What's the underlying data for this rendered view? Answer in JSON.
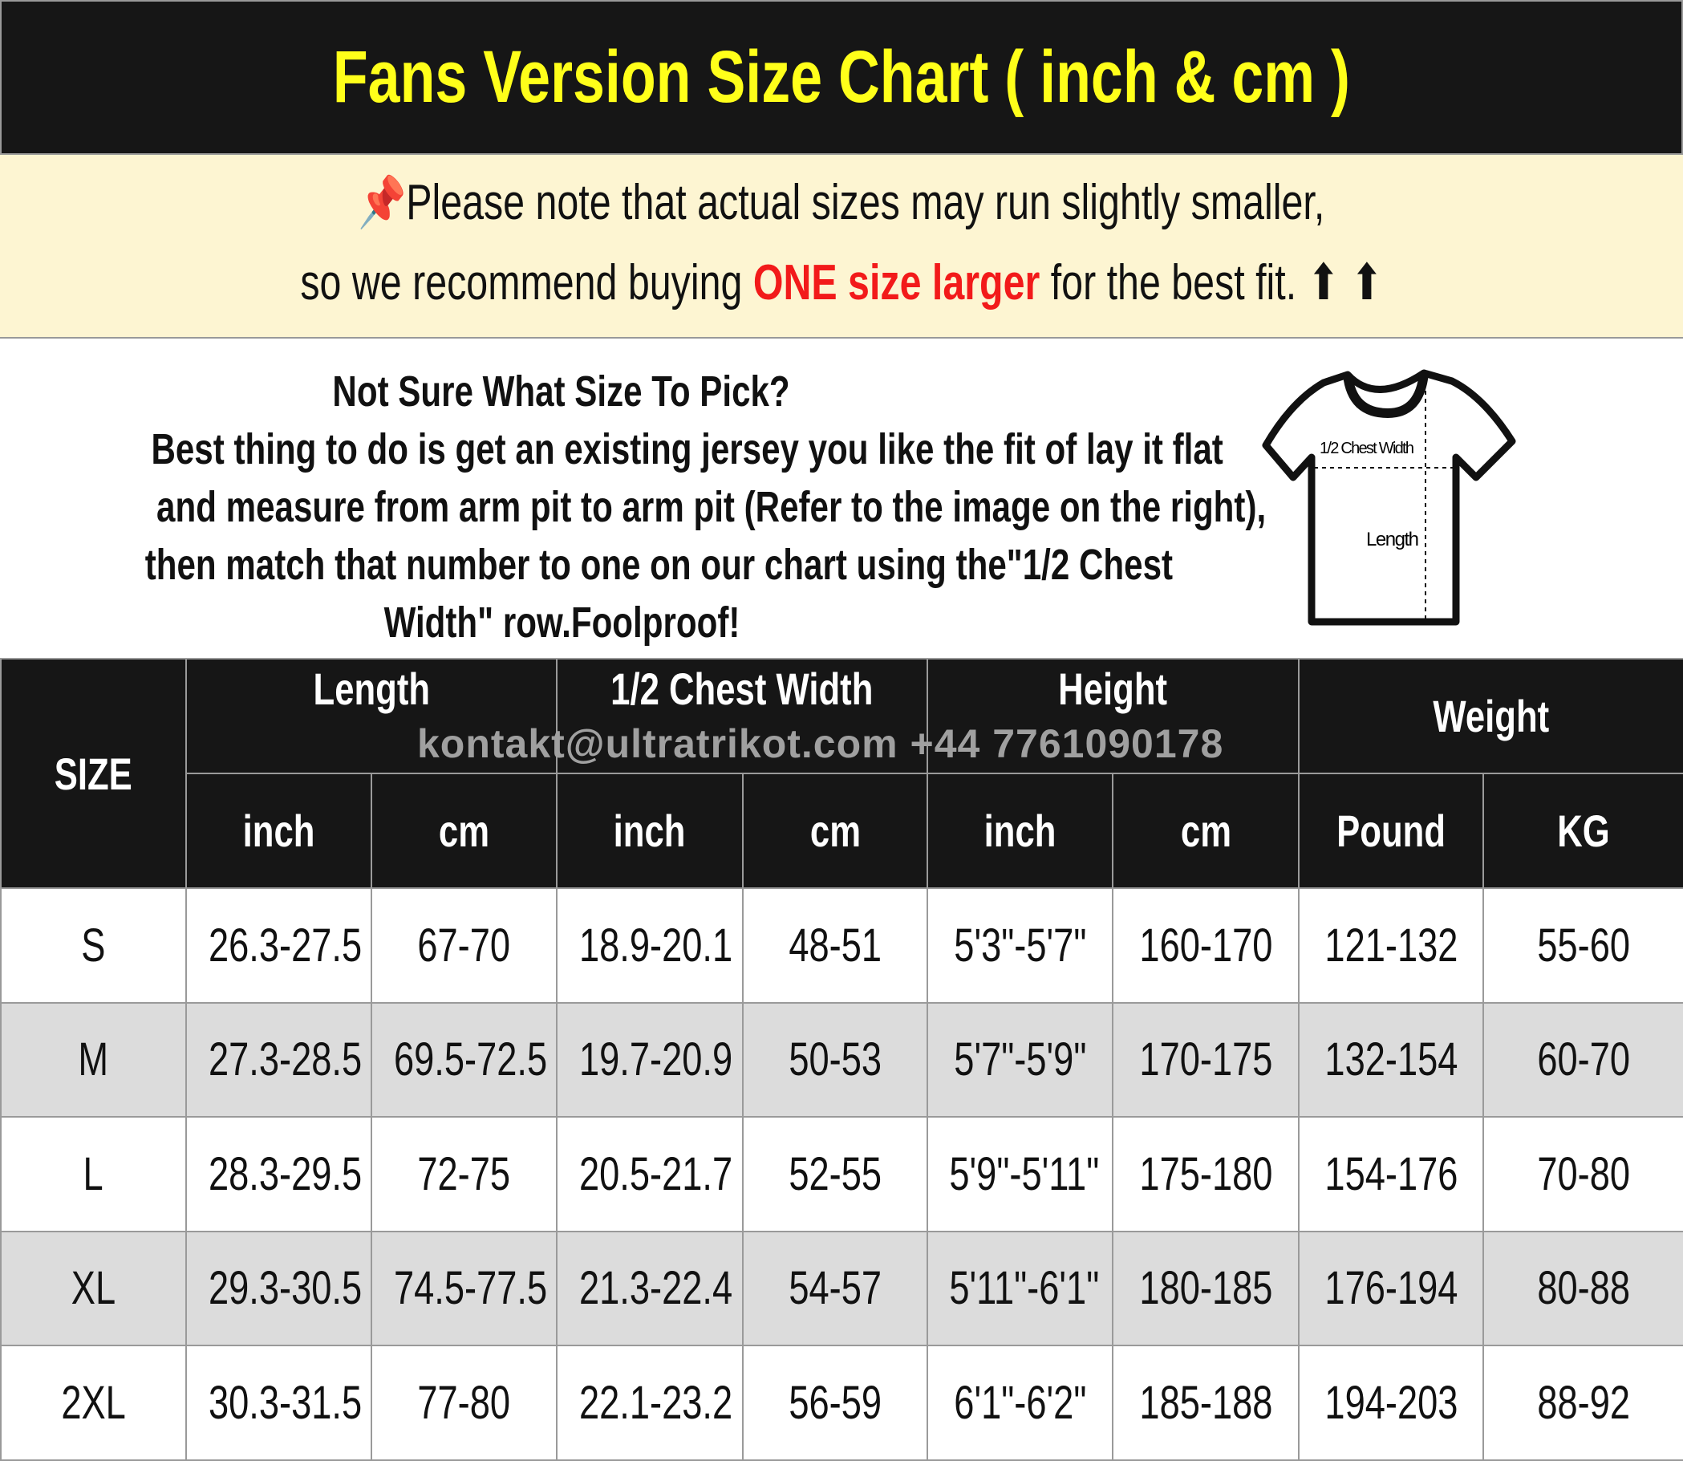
{
  "title": "Fans Version Size Chart ( inch & cm )",
  "note": {
    "line1": "Please note that actual sizes may run slightly smaller,",
    "line2_pre": "so we recommend buying ",
    "line2_highlight": "ONE size larger",
    "line2_post": " for the best fit. ⬆ ⬆",
    "icon": "pushpin-icon",
    "highlight_color": "#f21a1a"
  },
  "info": {
    "lines": [
      "Not Sure What Size To Pick?",
      "Best thing to do is get an existing jersey you like the fit of lay it flat",
      "and measure from arm pit to arm pit (Refer to the image on the right),",
      "then match that number to one on our chart using the\"1/2 Chest",
      "Width\" row.Foolproof!"
    ]
  },
  "diagram": {
    "chest_label": "1/2 Chest Width",
    "length_label": "Length"
  },
  "watermark": "kontakt@ultratrikot.com  +44 7761090178",
  "table": {
    "size_header": "SIZE",
    "groups": [
      "Length",
      "1/2 Chest Width",
      "Height",
      "Weight"
    ],
    "subheaders": [
      "inch",
      "cm",
      "inch",
      "cm",
      "inch",
      "cm",
      "Pound",
      "KG"
    ],
    "rows": [
      [
        "S",
        "26.3-27.5",
        "67-70",
        "18.9-20.1",
        "48-51",
        "5'3\"-5'7\"",
        "160-170",
        "121-132",
        "55-60"
      ],
      [
        "M",
        "27.3-28.5",
        "69.5-72.5",
        "19.7-20.9",
        "50-53",
        "5'7\"-5'9\"",
        "170-175",
        "132-154",
        "60-70"
      ],
      [
        "L",
        "28.3-29.5",
        "72-75",
        "20.5-21.7",
        "52-55",
        "5'9\"-5'11\"",
        "175-180",
        "154-176",
        "70-80"
      ],
      [
        "XL",
        "29.3-30.5",
        "74.5-77.5",
        "21.3-22.4",
        "54-57",
        "5'11\"-6'1\"",
        "180-185",
        "176-194",
        "80-88"
      ],
      [
        "2XL",
        "30.3-31.5",
        "77-80",
        "22.1-23.2",
        "56-59",
        "6'1\"-6'2\"",
        "185-188",
        "194-203",
        "88-92"
      ]
    ]
  },
  "colors": {
    "header_bg": "#161616",
    "title": "#ffff1a",
    "note_bg": "#fdf5d2",
    "alt_row": "#dcdcdc"
  }
}
